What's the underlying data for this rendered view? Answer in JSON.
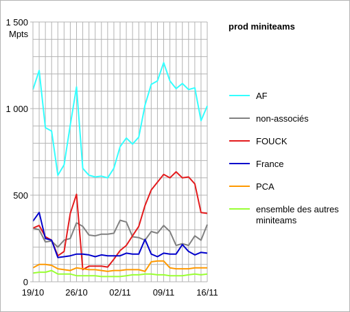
{
  "chart_data": {
    "type": "line",
    "title": "prod miniteams",
    "ylabel": "Mpts",
    "ylim": [
      0,
      1500
    ],
    "yticks": [
      "0",
      "500",
      "1 000",
      "1 500"
    ],
    "xticks": [
      "19/10",
      "26/10",
      "02/11",
      "09/11",
      "16/11"
    ],
    "x": [
      "19/10",
      "20/10",
      "21/10",
      "22/10",
      "23/10",
      "24/10",
      "25/10",
      "26/10",
      "27/10",
      "28/10",
      "29/10",
      "30/10",
      "31/10",
      "01/11",
      "02/11",
      "03/11",
      "04/11",
      "05/11",
      "06/11",
      "07/11",
      "08/11",
      "09/11",
      "10/11",
      "11/11",
      "12/11",
      "13/11",
      "14/11",
      "15/11",
      "16/11"
    ],
    "grid": true,
    "legend_position": "right",
    "series": [
      {
        "name": "AF",
        "color": "#33ffff",
        "values": [
          1110,
          1220,
          890,
          870,
          615,
          675,
          905,
          1125,
          655,
          615,
          605,
          610,
          600,
          655,
          780,
          830,
          795,
          835,
          1020,
          1140,
          1160,
          1265,
          1160,
          1115,
          1145,
          1110,
          1120,
          930,
          1015
        ]
      },
      {
        "name": "non-associés",
        "color": "#808080",
        "values": [
          310,
          300,
          230,
          235,
          200,
          240,
          250,
          340,
          320,
          270,
          265,
          275,
          275,
          280,
          355,
          345,
          260,
          255,
          240,
          290,
          280,
          325,
          290,
          210,
          220,
          210,
          265,
          240,
          330
        ]
      },
      {
        "name": "FOUCK",
        "color": "#e31a1c",
        "values": [
          310,
          325,
          260,
          240,
          150,
          175,
          395,
          505,
          70,
          90,
          90,
          90,
          85,
          130,
          180,
          210,
          265,
          320,
          440,
          530,
          575,
          620,
          600,
          635,
          600,
          605,
          565,
          400,
          395
        ]
      },
      {
        "name": "France",
        "color": "#0000cc",
        "values": [
          350,
          400,
          250,
          240,
          140,
          145,
          150,
          160,
          160,
          155,
          145,
          155,
          150,
          150,
          150,
          165,
          160,
          160,
          245,
          160,
          145,
          165,
          160,
          160,
          215,
          175,
          155,
          170,
          165
        ]
      },
      {
        "name": "PCA",
        "color": "#ff9900",
        "values": [
          80,
          100,
          100,
          95,
          75,
          70,
          65,
          80,
          75,
          70,
          70,
          65,
          60,
          65,
          65,
          70,
          70,
          70,
          60,
          115,
          120,
          120,
          80,
          75,
          75,
          75,
          80,
          80,
          80
        ]
      },
      {
        "name": "ensemble des autres miniteams",
        "color": "#99ff33",
        "values": [
          50,
          55,
          55,
          65,
          45,
          45,
          45,
          35,
          35,
          35,
          35,
          30,
          30,
          30,
          30,
          35,
          40,
          40,
          45,
          45,
          40,
          40,
          35,
          35,
          35,
          40,
          45,
          40,
          45
        ]
      }
    ]
  }
}
